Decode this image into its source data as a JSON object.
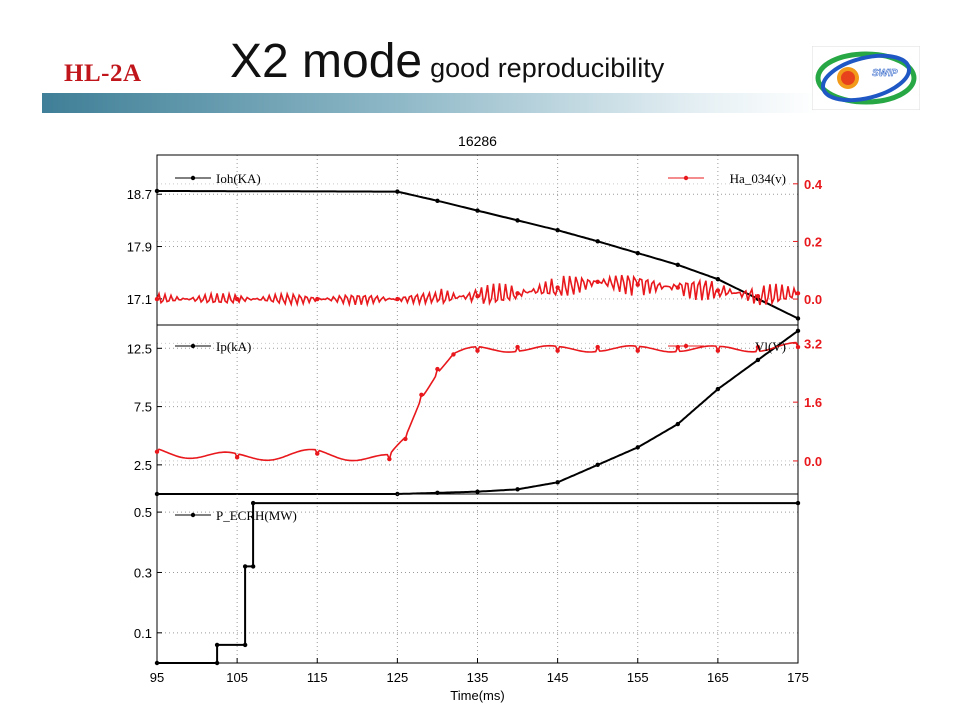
{
  "header": {
    "badge": "HL-2A",
    "title_main": "X2 mode",
    "title_sub": "good reproducibility",
    "logo_text": "SWIP"
  },
  "colors": {
    "black_series": "#000000",
    "red_series": "#e8181c",
    "brand_red": "#c0161b",
    "band": "#3f7f97"
  },
  "chart_data": {
    "type": "line",
    "title": "16286",
    "xlabel": "Time(ms)",
    "xlim": [
      95,
      175
    ],
    "xticks": [
      95,
      105,
      115,
      125,
      135,
      145,
      155,
      165,
      175
    ],
    "grid": true,
    "panels": [
      {
        "left_axis": {
          "ticks": [
            17.1,
            17.9,
            18.7
          ],
          "ylim": [
            16.7,
            19.3
          ]
        },
        "right_axis": {
          "ticks": [
            0.0,
            0.2,
            0.4
          ],
          "ylim": [
            -0.09,
            0.5
          ]
        },
        "series": [
          {
            "name": "Ioh(KA)",
            "axis": "left",
            "color": "#000000",
            "legend": "top-left",
            "x": [
              95,
              125,
              130,
              135,
              140,
              145,
              150,
              155,
              160,
              165,
              170,
              175
            ],
            "y": [
              18.75,
              18.74,
              18.6,
              18.45,
              18.3,
              18.15,
              17.98,
              17.8,
              17.62,
              17.4,
              17.1,
              16.8
            ]
          },
          {
            "name": "Ha_034(v)",
            "axis": "right",
            "color": "#e8181c",
            "legend": "top-right",
            "x": [
              95,
              105,
              115,
              125,
              135,
              140,
              145,
              150,
              155,
              160,
              165,
              170,
              175
            ],
            "y": [
              0.0,
              0.0,
              0.0,
              0.0,
              0.01,
              0.02,
              0.04,
              0.06,
              0.05,
              0.04,
              0.03,
              0.01,
              0.02
            ]
          }
        ]
      },
      {
        "left_axis": {
          "ticks": [
            2.5,
            7.5,
            12.5
          ],
          "ylim": [
            0,
            14.5
          ]
        },
        "right_axis": {
          "ticks": [
            0.0,
            1.6,
            3.2
          ],
          "ylim": [
            -0.9,
            3.7
          ]
        },
        "series": [
          {
            "name": "Ip(kA)",
            "axis": "left",
            "color": "#000000",
            "legend": "top-left",
            "x": [
              95,
              125,
              130,
              135,
              140,
              145,
              150,
              155,
              160,
              165,
              170,
              175
            ],
            "y": [
              0.0,
              0.0,
              0.1,
              0.2,
              0.4,
              1.0,
              2.5,
              4.0,
              6.0,
              9.0,
              11.5,
              14.0
            ]
          },
          {
            "name": "Vl(V)",
            "axis": "right",
            "color": "#e8181c",
            "legend": "top-right",
            "x": [
              95,
              105,
              115,
              124,
              126,
              128,
              130,
              132,
              135,
              140,
              145,
              150,
              155,
              160,
              165,
              170,
              175
            ],
            "y": [
              0.25,
              0.1,
              0.2,
              0.05,
              0.6,
              1.8,
              2.5,
              2.9,
              3.0,
              3.1,
              3.0,
              3.1,
              3.0,
              3.1,
              3.0,
              3.1,
              3.1
            ]
          }
        ]
      },
      {
        "left_axis": {
          "ticks": [
            0.1,
            0.3,
            0.5
          ],
          "ylim": [
            0,
            0.56
          ]
        },
        "series": [
          {
            "name": "P_ECRH(MW)",
            "axis": "left",
            "color": "#000000",
            "legend": "top-left",
            "x": [
              95,
              102.5,
              102.5,
              106,
              106,
              107,
              107,
              175
            ],
            "y": [
              0.0,
              0.0,
              0.06,
              0.06,
              0.32,
              0.32,
              0.53,
              0.53
            ]
          }
        ]
      }
    ]
  }
}
